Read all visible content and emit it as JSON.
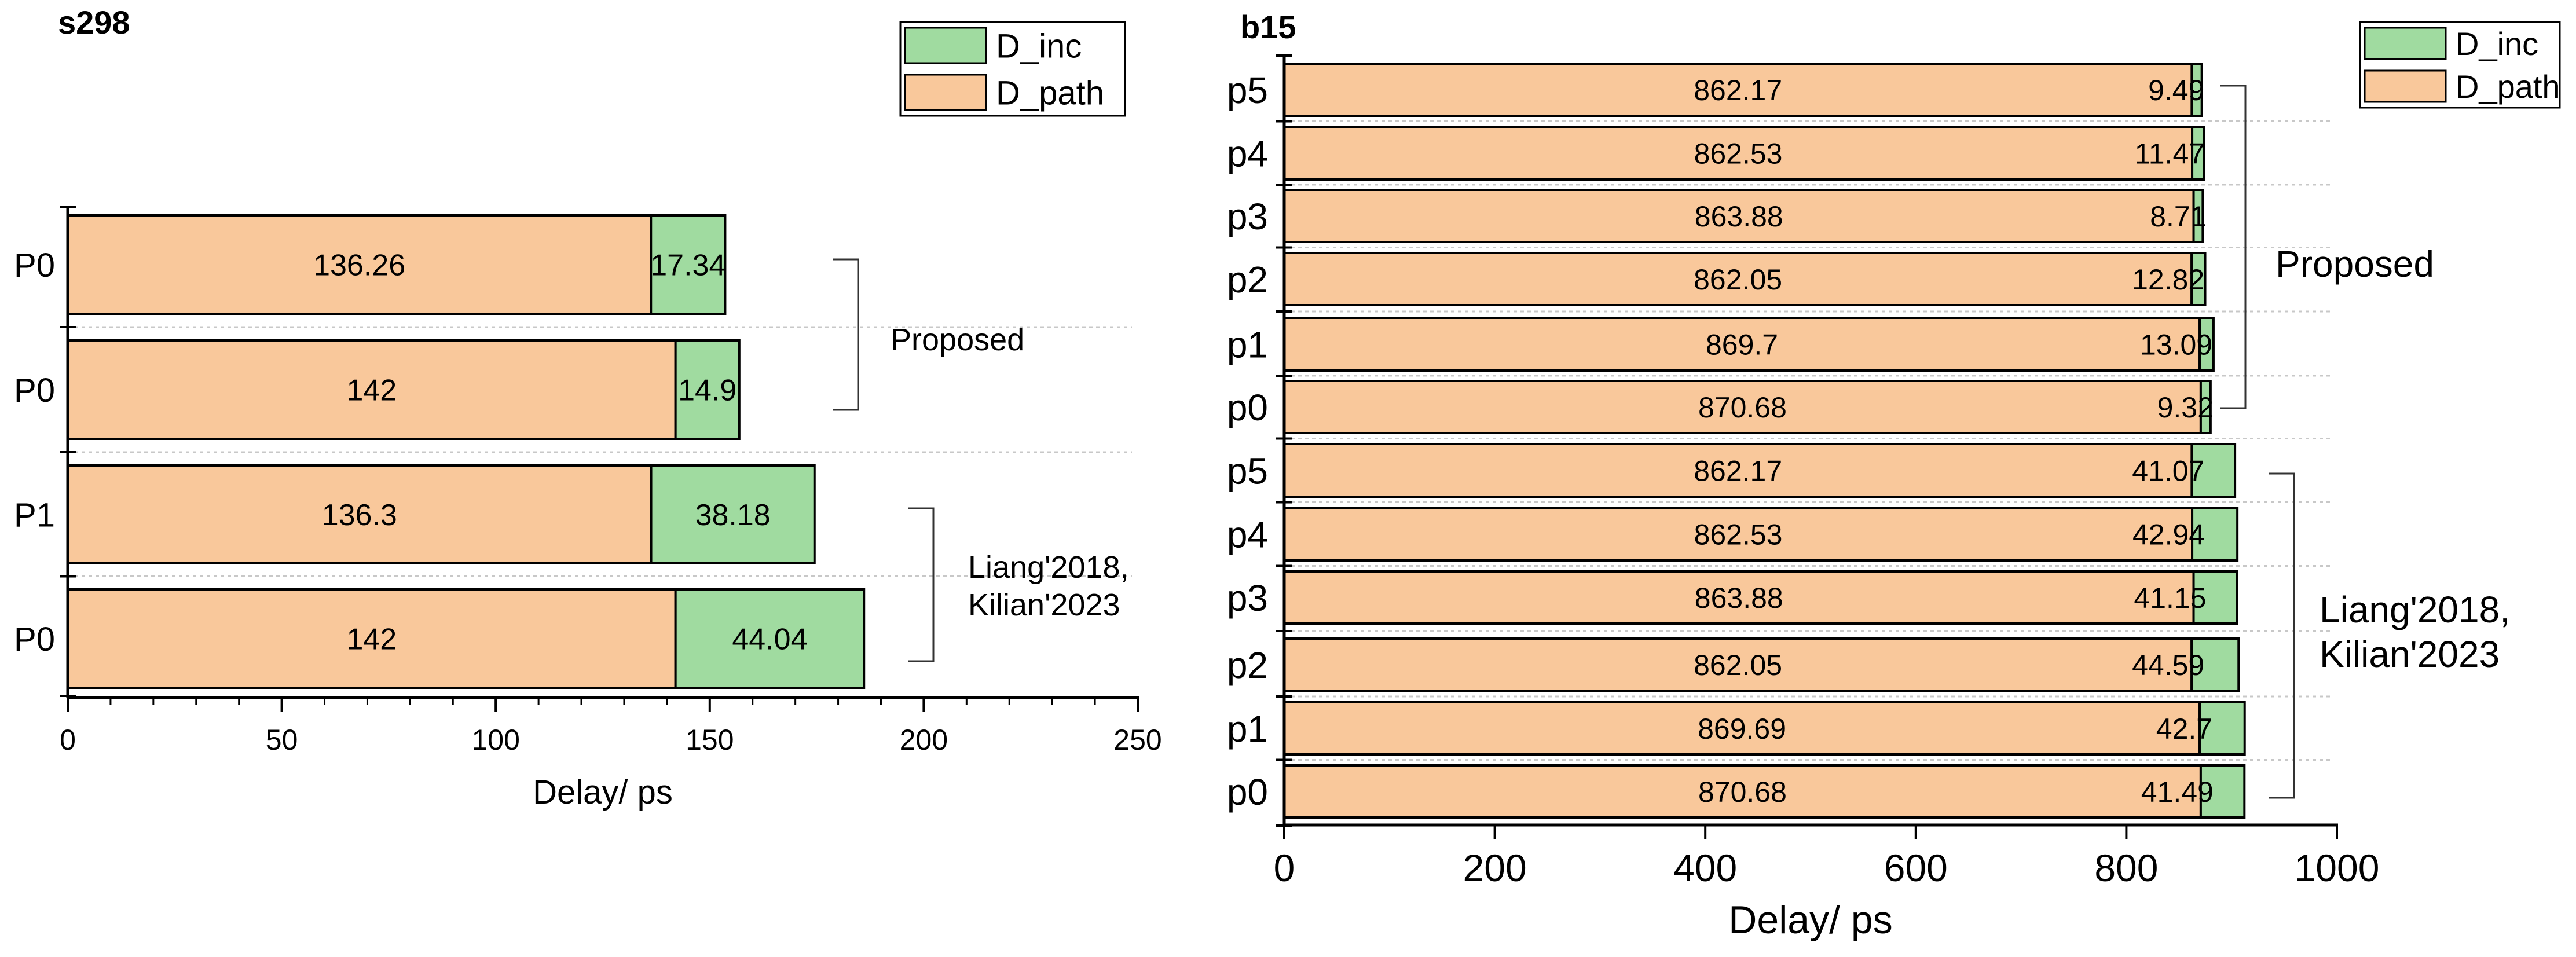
{
  "colors": {
    "d_path": "#f9c89b",
    "d_inc": "#a0dba0",
    "axis": "#000000",
    "grid": "#c8c8c8"
  },
  "chart_data": [
    {
      "id": "s298",
      "type": "bar",
      "orientation": "horizontal",
      "stacked": true,
      "title": "s298",
      "xlabel": "Delay/ ps",
      "ylabel": "",
      "xlim": [
        0,
        250
      ],
      "xticks": [
        0,
        50,
        100,
        150,
        200,
        250
      ],
      "legend_position": "top-right",
      "categories": [
        "P0",
        "P0",
        "P1",
        "P0"
      ],
      "series": [
        {
          "name": "D_path",
          "values": [
            136.26,
            142,
            136.3,
            142
          ],
          "labels": [
            "136.26",
            "142",
            "136.3",
            "142"
          ]
        },
        {
          "name": "D_inc",
          "values": [
            17.34,
            14.9,
            38.18,
            44.04
          ],
          "labels": [
            "17.34",
            "14.9",
            "38.18",
            "44.04"
          ]
        }
      ],
      "groups": [
        {
          "label": "Proposed",
          "rows": [
            0,
            1
          ]
        },
        {
          "label": "Liang'2018,\nKilian'2023",
          "rows": [
            2,
            3
          ]
        }
      ]
    },
    {
      "id": "b15",
      "type": "bar",
      "orientation": "horizontal",
      "stacked": true,
      "title": "b15",
      "xlabel": "Delay/ ps",
      "ylabel": "",
      "xlim": [
        0,
        1000
      ],
      "xticks": [
        0,
        200,
        400,
        600,
        800,
        1000
      ],
      "legend_position": "top-right",
      "categories": [
        "p5",
        "p4",
        "p3",
        "p2",
        "p1",
        "p0",
        "p5",
        "p4",
        "p3",
        "p2",
        "p1",
        "p0"
      ],
      "series": [
        {
          "name": "D_path",
          "values": [
            862.17,
            862.53,
            863.88,
            862.05,
            869.7,
            870.68,
            862.17,
            862.53,
            863.88,
            862.05,
            869.69,
            870.68
          ],
          "labels": [
            "862.17",
            "862.53",
            "863.88",
            "862.05",
            "869.7",
            "870.68",
            "862.17",
            "862.53",
            "863.88",
            "862.05",
            "869.69",
            "870.68"
          ]
        },
        {
          "name": "D_inc",
          "values": [
            9.49,
            11.47,
            8.71,
            12.82,
            13.09,
            9.32,
            41.07,
            42.94,
            41.15,
            44.59,
            42.7,
            41.49
          ],
          "labels": [
            "9.49",
            "11.47",
            "8.71",
            "12.82",
            "13.09",
            "9.32",
            "41.07",
            "42.94",
            "41.15",
            "44.59",
            "42.7",
            "41.49"
          ]
        }
      ],
      "groups": [
        {
          "label": "Proposed",
          "rows": [
            0,
            5
          ]
        },
        {
          "label": "Liang'2018,\nKilian'2023",
          "rows": [
            6,
            11
          ]
        }
      ]
    }
  ]
}
